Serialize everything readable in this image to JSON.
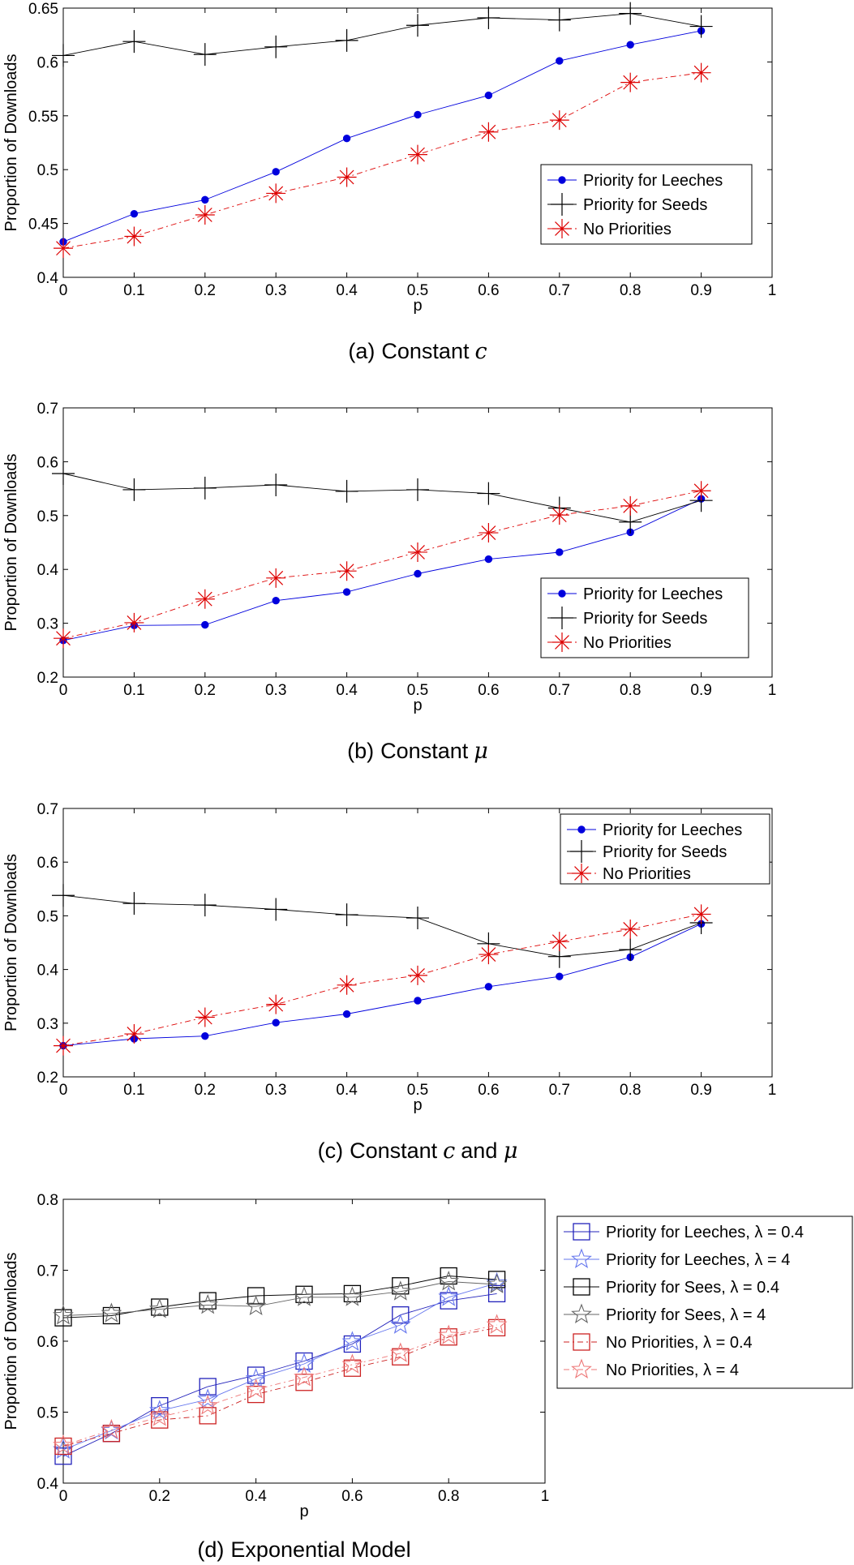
{
  "chart_data": [
    {
      "type": "line",
      "caption": {
        "label": "(a)",
        "text": "Constant",
        "symbol": "c",
        "suffix": ""
      },
      "xlabel": "p",
      "ylabel": "Proportion of Downloads",
      "xlim": [
        0,
        1
      ],
      "ylim": [
        0.4,
        0.65
      ],
      "xticks": [
        "0",
        "0.1",
        "0.2",
        "0.3",
        "0.4",
        "0.5",
        "0.6",
        "0.7",
        "0.8",
        "0.9",
        "1"
      ],
      "yticks": [
        "0.4",
        "0.45",
        "0.5",
        "0.55",
        "0.6",
        "0.65"
      ],
      "legend_position": "right-middle",
      "x": [
        0,
        0.1,
        0.2,
        0.3,
        0.4,
        0.5,
        0.6,
        0.7,
        0.8,
        0.9
      ],
      "series": [
        {
          "name": "Priority for Leeches",
          "color": "#0000dd",
          "marker": "dot",
          "dash": "solid",
          "values": [
            0.433,
            0.459,
            0.472,
            0.498,
            0.529,
            0.551,
            0.569,
            0.601,
            0.616,
            0.629
          ]
        },
        {
          "name": "Priority for Seeds",
          "color": "#000000",
          "marker": "plus",
          "dash": "solid",
          "values": [
            0.606,
            0.619,
            0.607,
            0.614,
            0.62,
            0.634,
            0.641,
            0.639,
            0.645,
            0.633
          ]
        },
        {
          "name": "No Priorities",
          "color": "#dd0000",
          "marker": "star",
          "dash": "dashdot",
          "values": [
            0.427,
            0.438,
            0.458,
            0.478,
            0.493,
            0.514,
            0.535,
            0.546,
            0.581,
            0.59
          ]
        }
      ]
    },
    {
      "type": "line",
      "caption": {
        "label": "(b)",
        "text": "Constant",
        "symbol": "μ",
        "suffix": ""
      },
      "xlabel": "p",
      "ylabel": "Proportion of Downloads",
      "xlim": [
        0,
        1
      ],
      "ylim": [
        0.2,
        0.7
      ],
      "xticks": [
        "0",
        "0.1",
        "0.2",
        "0.3",
        "0.4",
        "0.5",
        "0.6",
        "0.7",
        "0.8",
        "0.9",
        "1"
      ],
      "yticks": [
        "0.2",
        "0.3",
        "0.4",
        "0.5",
        "0.6",
        "0.7"
      ],
      "legend_position": "bottom-right",
      "x": [
        0,
        0.1,
        0.2,
        0.3,
        0.4,
        0.5,
        0.6,
        0.7,
        0.8,
        0.9
      ],
      "series": [
        {
          "name": "Priority for Leeches",
          "color": "#0000dd",
          "marker": "dot",
          "dash": "solid",
          "values": [
            0.268,
            0.296,
            0.297,
            0.342,
            0.358,
            0.392,
            0.419,
            0.432,
            0.469,
            0.531
          ]
        },
        {
          "name": "Priority for Seeds",
          "color": "#000000",
          "marker": "plus",
          "dash": "solid",
          "values": [
            0.578,
            0.548,
            0.551,
            0.557,
            0.545,
            0.548,
            0.541,
            0.514,
            0.488,
            0.528
          ]
        },
        {
          "name": "No Priorities",
          "color": "#dd0000",
          "marker": "star",
          "dash": "dashdot",
          "values": [
            0.272,
            0.301,
            0.345,
            0.384,
            0.397,
            0.432,
            0.468,
            0.501,
            0.518,
            0.546
          ]
        }
      ]
    },
    {
      "type": "line",
      "caption": {
        "label": "(c)",
        "text": "Constant",
        "symbol": "c",
        "suffix": "and μ"
      },
      "xlabel": "p",
      "ylabel": "Proportion of Downloads",
      "xlim": [
        0,
        1
      ],
      "ylim": [
        0.2,
        0.7
      ],
      "xticks": [
        "0",
        "0.1",
        "0.2",
        "0.3",
        "0.4",
        "0.5",
        "0.6",
        "0.7",
        "0.8",
        "0.9",
        "1"
      ],
      "yticks": [
        "0.2",
        "0.3",
        "0.4",
        "0.5",
        "0.6",
        "0.7"
      ],
      "legend_position": "top-right",
      "x": [
        0,
        0.1,
        0.2,
        0.3,
        0.4,
        0.5,
        0.6,
        0.7,
        0.8,
        0.9
      ],
      "series": [
        {
          "name": "Priority for Leeches",
          "color": "#0000dd",
          "marker": "dot",
          "dash": "solid",
          "values": [
            0.258,
            0.271,
            0.276,
            0.301,
            0.317,
            0.342,
            0.368,
            0.387,
            0.423,
            0.485
          ]
        },
        {
          "name": "Priority for Seeds",
          "color": "#000000",
          "marker": "plus",
          "dash": "solid",
          "values": [
            0.538,
            0.523,
            0.52,
            0.512,
            0.502,
            0.496,
            0.448,
            0.424,
            0.437,
            0.487
          ]
        },
        {
          "name": "No Priorities",
          "color": "#dd0000",
          "marker": "star",
          "dash": "dashdot",
          "values": [
            0.258,
            0.28,
            0.311,
            0.335,
            0.371,
            0.389,
            0.428,
            0.452,
            0.475,
            0.503
          ]
        }
      ]
    },
    {
      "type": "line",
      "caption": {
        "label": "(d)",
        "text": "Exponential Model",
        "symbol": "",
        "suffix": ""
      },
      "xlabel": "p",
      "ylabel": "Proportion of Downloads",
      "xlim": [
        0,
        1
      ],
      "ylim": [
        0.4,
        0.8
      ],
      "xticks": [
        "0",
        "0.2",
        "0.4",
        "0.6",
        "0.8",
        "1"
      ],
      "yticks": [
        "0.4",
        "0.5",
        "0.6",
        "0.7",
        "0.8"
      ],
      "legend_position": "outside-right",
      "x": [
        0,
        0.1,
        0.2,
        0.3,
        0.4,
        0.5,
        0.6,
        0.7,
        0.8,
        0.9
      ],
      "series": [
        {
          "name": "Priority for Leeches, λ = 0.4",
          "color": "#2222bb",
          "marker": "square",
          "dash": "solid",
          "values": [
            0.438,
            0.47,
            0.509,
            0.536,
            0.552,
            0.572,
            0.596,
            0.637,
            0.657,
            0.667
          ]
        },
        {
          "name": "Priority for Leeches, λ = 4",
          "color": "#6677ee",
          "marker": "pstar",
          "dash": "solid",
          "values": [
            0.447,
            0.474,
            0.502,
            0.518,
            0.547,
            0.568,
            0.599,
            0.623,
            0.662,
            0.682
          ]
        },
        {
          "name": "Priority for Sees, λ = 0.4",
          "color": "#000000",
          "marker": "square",
          "dash": "solid",
          "values": [
            0.633,
            0.636,
            0.648,
            0.657,
            0.664,
            0.666,
            0.667,
            0.678,
            0.692,
            0.687
          ]
        },
        {
          "name": "Priority for Sees, λ = 4",
          "color": "#666666",
          "marker": "pstar",
          "dash": "solid",
          "values": [
            0.636,
            0.639,
            0.645,
            0.651,
            0.649,
            0.662,
            0.662,
            0.67,
            0.684,
            0.68
          ]
        },
        {
          "name": "No Priorities, λ = 0.4",
          "color": "#cc2222",
          "marker": "square",
          "dash": "dashdot",
          "values": [
            0.452,
            0.47,
            0.489,
            0.495,
            0.525,
            0.542,
            0.562,
            0.578,
            0.606,
            0.619
          ]
        },
        {
          "name": "No Priorities, λ = 4",
          "color": "#ee7777",
          "marker": "pstar",
          "dash": "dashdot",
          "values": [
            0.453,
            0.475,
            0.493,
            0.509,
            0.532,
            0.549,
            0.567,
            0.583,
            0.608,
            0.623
          ]
        }
      ]
    }
  ]
}
